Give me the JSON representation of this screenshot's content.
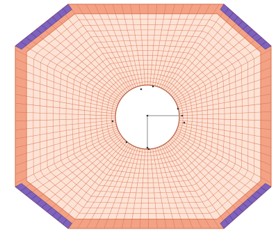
{
  "figure": {
    "kind": "octagonal finite-element mesh with central circular hole",
    "colors": {
      "background": "#ffffff",
      "mesh_line": "#d9704a",
      "mesh_fill": "#fde3d6",
      "boundary_band": "#f3a285",
      "corner_elements": "#7e62bd",
      "hole_fill": "#ffffff",
      "hole_outline": "#b85a3c",
      "axis_line": "#8a8a8a",
      "node_marker": "#333333"
    }
  }
}
